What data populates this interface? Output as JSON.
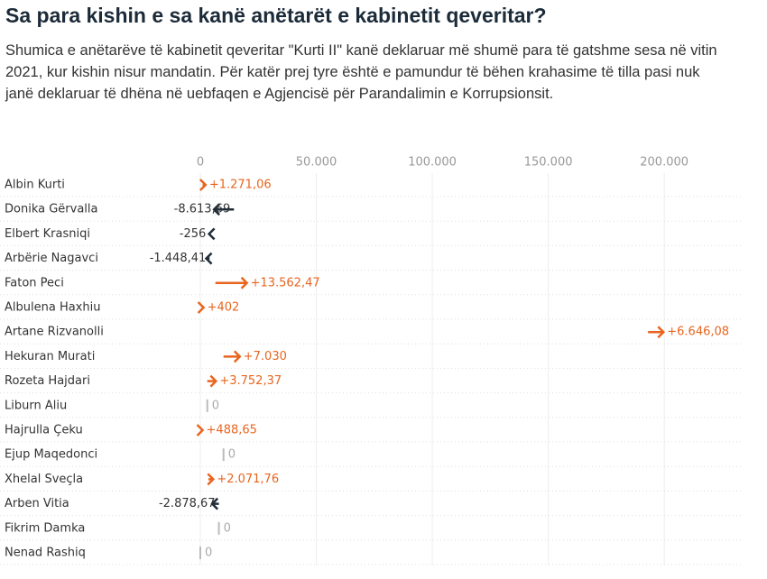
{
  "chart_data": {
    "type": "arrow",
    "title": "Sa para kishin e sa kanë anëtarët e kabinetit qeveritar?",
    "subtitle": "Shumica e anëtarëve të kabinetit qeveritar \"Kurti II\" kanë deklaruar më shumë para të gatshme sesa në vitin 2021, kur kishin nisur mandatin. Për katër prej tyre është e pamundur të bëhen krahasime të tilla pasi nuk janë deklaruar të dhëna në uebfaqen e Agjencisë për Parandalimin e Korrupsionsit.",
    "categories": [
      "Albin Kurti",
      "Donika Gërvalla",
      "Elbert Krasniqi",
      "Arbërie Nagavci",
      "Faton Peci",
      "Albulena Haxhiu",
      "Artane Rizvanolli",
      "Hekuran Murati",
      "Rozeta Hajdari",
      "Liburn Aliu",
      "Hajrulla Çeku",
      "Ejup Maqedonci",
      "Xhelal Sveçla",
      "Arben Vitia",
      "Fikrim Damka",
      "Nenad Rashiq"
    ],
    "start": [
      1000,
      14500,
      4000,
      4000,
      6500,
      1000,
      193000,
      10000,
      3000,
      3000,
      500,
      10000,
      3500,
      8000,
      8000,
      0
    ],
    "values": [
      1271.06,
      -8613.69,
      -256,
      -1448.41,
      13562.47,
      402,
      6646.08,
      7030,
      3752.37,
      0,
      488.65,
      0,
      2071.76,
      -2878.67,
      0,
      0
    ],
    "value_labels": [
      "+1.271,06",
      "-8.613,69",
      "-256",
      "-1.448,41",
      "+13.562,47",
      "+402",
      "+6.646,08",
      "+7.030",
      "+3.752,37",
      "0",
      "+488,65",
      "0",
      "+2.071,76",
      "-2.878,67",
      "0",
      "0"
    ],
    "colors": {
      "increase": "#e8651f",
      "decrease": "#1f2d3a",
      "unchanged": "#bbbbbb"
    },
    "xlim": [
      0,
      233000
    ],
    "xticks": [
      0,
      {
        "value": 50000,
        "label": "50.000"
      },
      {
        "value": 100000,
        "label": "100.000"
      },
      {
        "value": 150000,
        "label": "150.000"
      },
      {
        "value": 200000,
        "label": "200.000"
      }
    ],
    "grid": true
  }
}
